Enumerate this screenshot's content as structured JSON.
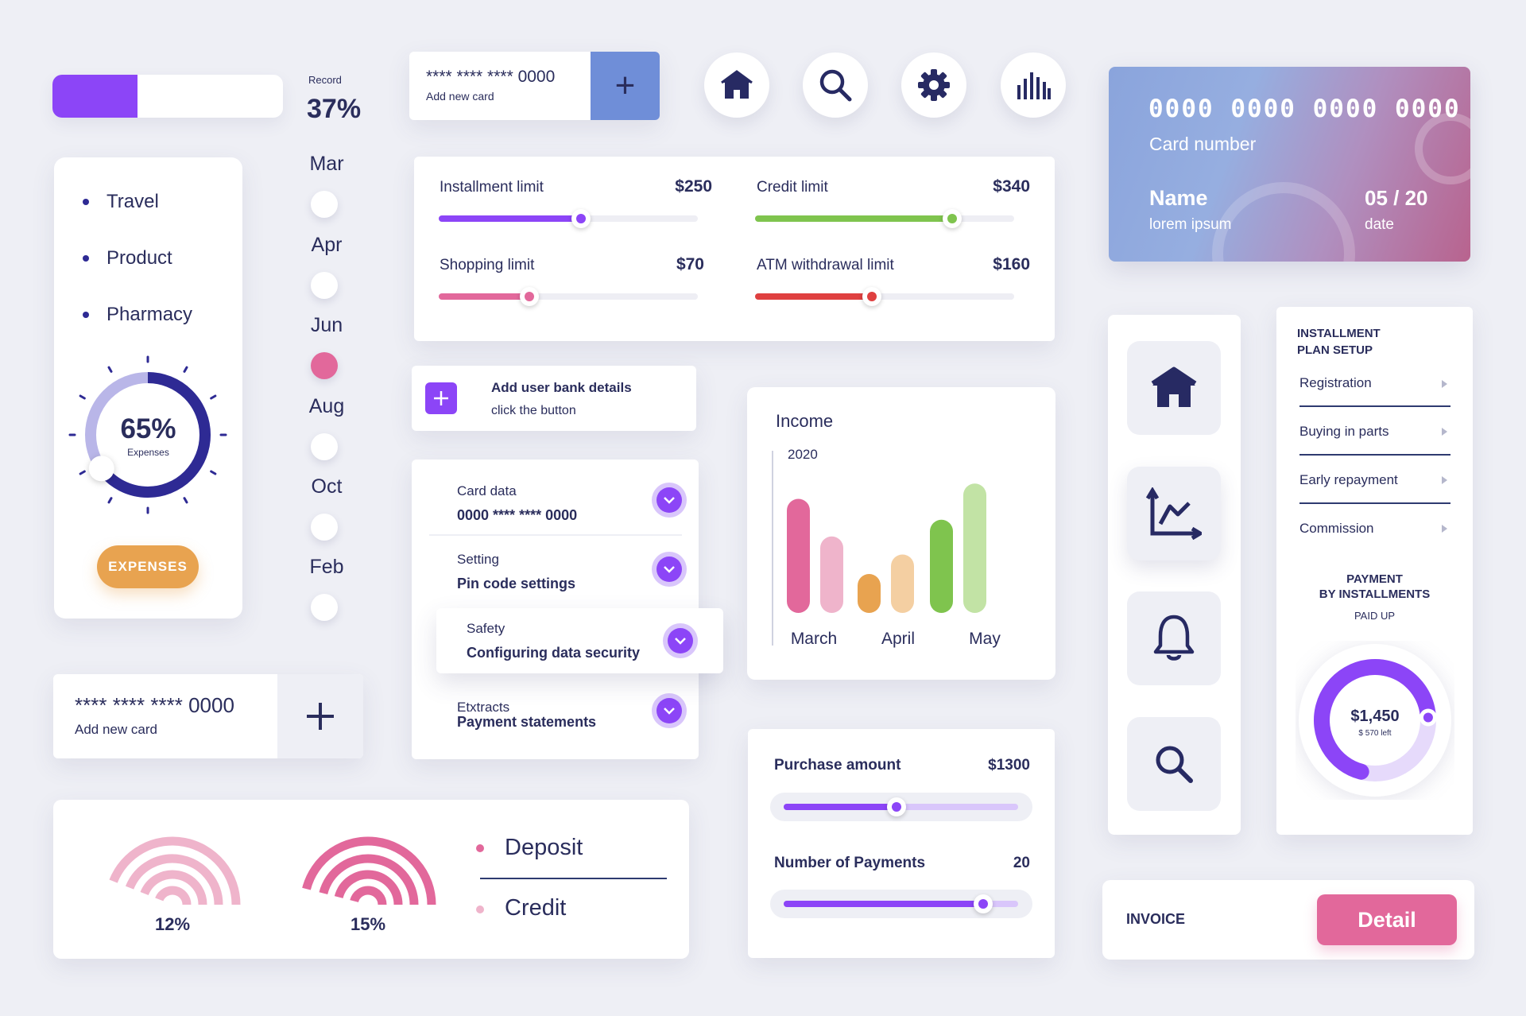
{
  "progress": {
    "label": "Record",
    "value_text": "37%",
    "fraction": 0.37
  },
  "add_card_top": {
    "number": "**** **** **** 0000",
    "label": "Add new card",
    "button": "+"
  },
  "add_card_bottom": {
    "number": "**** **** **** 0000",
    "label": "Add new card",
    "button": "+"
  },
  "top_icons": [
    "home-icon",
    "search-icon",
    "gear-icon",
    "bar-chart-icon"
  ],
  "credit_card": {
    "number": "0000 0000 0000 0000",
    "number_label": "Card number",
    "name": "Name",
    "name_value": "lorem ipsum",
    "expiry": "05 / 20",
    "expiry_label": "date"
  },
  "categories": {
    "items": [
      "Travel",
      "Product",
      "Pharmacy"
    ],
    "gauge_value": "65%",
    "gauge_label": "Expenses",
    "gauge_fraction": 0.65,
    "button": "EXPENSES"
  },
  "months": {
    "items": [
      "Mar",
      "Apr",
      "Jun",
      "Aug",
      "Oct",
      "Feb"
    ],
    "selected": "Jun"
  },
  "limits": [
    {
      "label": "Installment limit",
      "value": "$250",
      "fraction": 0.55,
      "color": "#8c45f7"
    },
    {
      "label": "Credit limit",
      "value": "$340",
      "fraction": 0.76,
      "color": "#7fc44e"
    },
    {
      "label": "Shopping limit",
      "value": "$70",
      "fraction": 0.35,
      "color": "#e2689b"
    },
    {
      "label": "ATM withdrawal limit",
      "value": "$160",
      "fraction": 0.45,
      "color": "#df4040"
    }
  ],
  "bank_details": {
    "title": "Add user bank details",
    "subtitle": "click the button"
  },
  "accordion": [
    {
      "title": "Card data",
      "value": "0000 **** **** 0000"
    },
    {
      "title": "Setting",
      "value": "Pin code settings"
    },
    {
      "title": "Safety",
      "value": "Configuring data security"
    },
    {
      "title": "Etxtracts",
      "value": "Payment statements"
    }
  ],
  "income": {
    "title": "Income",
    "year": "2020"
  },
  "chart_data": {
    "type": "bar",
    "title": "Income",
    "subtitle": "2020",
    "categories": [
      "March",
      "April",
      "May"
    ],
    "series": [
      {
        "values": [
          0.82,
          0.28,
          0.67
        ],
        "color": "#e2689b"
      },
      {
        "values": [
          0.55,
          0.42,
          0.93
        ],
        "color": "#efb4cb"
      }
    ],
    "series_colors_by_category": [
      [
        "#e2689b",
        "#efb4cb"
      ],
      [
        "#e8a350",
        "#f4cfa2"
      ],
      [
        "#7fc44e",
        "#c2e3a5"
      ]
    ],
    "ylim": [
      0,
      1
    ],
    "grid": false
  },
  "purchase": {
    "amount_label": "Purchase amount",
    "amount_value": "$1300",
    "amount_fraction": 0.48,
    "payments_label": "Number of Payments",
    "payments_value": "20",
    "payments_fraction": 0.85
  },
  "sidebar_icons": [
    "home-icon",
    "line-chart-icon",
    "bell-icon",
    "search-icon"
  ],
  "installment_plan": {
    "title_line1": "INSTALLMENT",
    "title_line2": "PLAN SETUP",
    "items": [
      "Registration",
      "Buying in parts",
      "Early repayment",
      "Commission"
    ],
    "payment_line1": "PAYMENT",
    "payment_line2": "BY INSTALLMENTS",
    "paid_label": "PAID UP",
    "amount": "$1,450",
    "left": "$ 570 left",
    "fraction": 0.7
  },
  "deposits": {
    "items": [
      {
        "label": "Deposit",
        "percent": "12%",
        "color": "#e2689b"
      },
      {
        "label": "Credit",
        "percent": "15%",
        "color": "#efb4cb"
      }
    ]
  },
  "invoice": {
    "label": "INVOICE",
    "button": "Detail"
  }
}
